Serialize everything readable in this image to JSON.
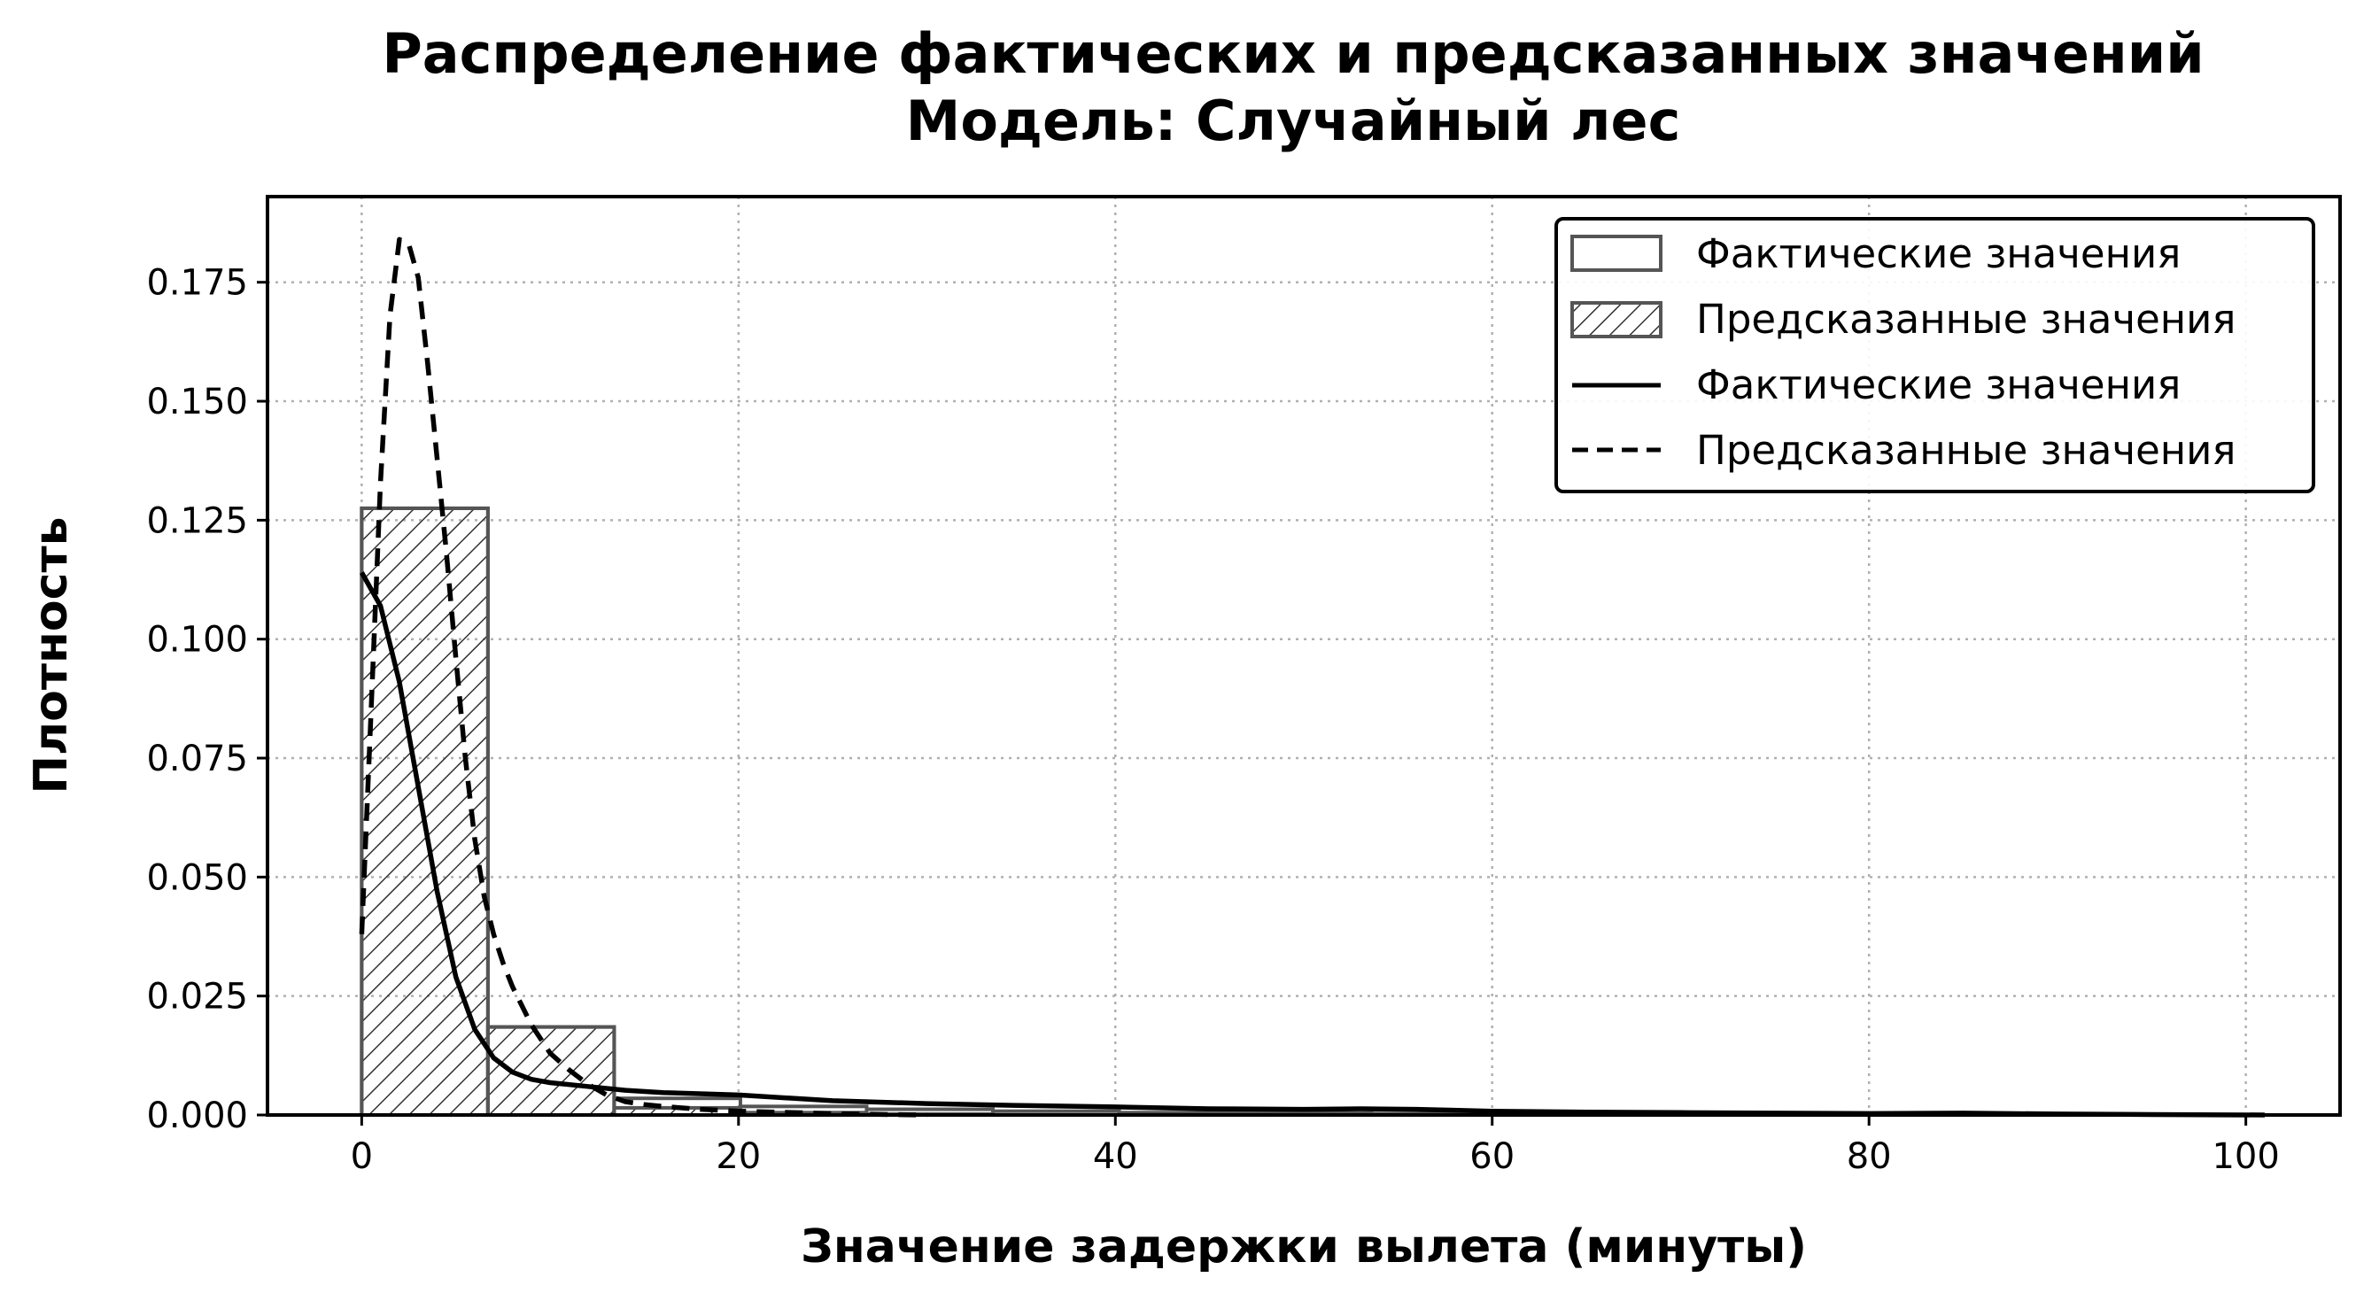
{
  "chart_data": {
    "type": "histogram",
    "title_line1": "Распределение фактических и предсказанных значений",
    "title_line2": "Модель: Случайный лес",
    "xlabel": "Значение задержки вылета (минуты)",
    "ylabel": "Плотность",
    "xlim": [
      -5,
      105
    ],
    "ylim": [
      0,
      0.193
    ],
    "xticks": [
      0,
      20,
      40,
      60,
      80,
      100
    ],
    "yticks": [
      0.0,
      0.025,
      0.05,
      0.075,
      0.1,
      0.125,
      0.15,
      0.175
    ],
    "grid": true,
    "legend_position": "top-right",
    "legend": [
      {
        "label": "Фактические значения",
        "kind": "patch"
      },
      {
        "label": "Предсказанные значения",
        "kind": "patch-hatched"
      },
      {
        "label": "Фактические значения",
        "kind": "line-solid"
      },
      {
        "label": "Предсказанные значения",
        "kind": "line-dashed"
      }
    ],
    "histograms": [
      {
        "name": "Фактические значения",
        "style": "outline",
        "bin_edges": [
          0,
          6.7,
          13.4,
          20.1,
          26.8,
          33.5,
          40.2,
          46.9,
          53.6,
          60.3,
          67,
          73.7,
          80.4,
          87.1,
          93.8,
          100.5
        ],
        "density": [
          0.1275,
          0.0185,
          0.0035,
          0.0018,
          0.0012,
          0.0008,
          0.0005,
          0.0004,
          0.0003,
          0.0002,
          0.0002,
          0.0001,
          0.0001,
          0.0001,
          0.0
        ]
      },
      {
        "name": "Предсказанные значения",
        "style": "hatched",
        "bin_edges": [
          0,
          6.7,
          13.4,
          20.1,
          26.8,
          33.5
        ],
        "density": [
          0.1275,
          0.0185,
          0.0015,
          0.0005,
          0.0002
        ]
      }
    ],
    "kde_series": [
      {
        "name": "Фактические значения",
        "line_style": "solid",
        "x": [
          0,
          1,
          2,
          3,
          4,
          5,
          6,
          7,
          8,
          9,
          10,
          12,
          14,
          16,
          20,
          25,
          30,
          35,
          40,
          45,
          50,
          53,
          56,
          60,
          65,
          70,
          75,
          80,
          85,
          90,
          95,
          101
        ],
        "y": [
          0.114,
          0.107,
          0.091,
          0.069,
          0.047,
          0.029,
          0.018,
          0.012,
          0.009,
          0.0075,
          0.0068,
          0.006,
          0.0052,
          0.0047,
          0.0042,
          0.003,
          0.0024,
          0.002,
          0.0017,
          0.0013,
          0.0012,
          0.0013,
          0.0012,
          0.0008,
          0.0006,
          0.0005,
          0.0004,
          0.0003,
          0.0004,
          0.0002,
          0.0001,
          0.0
        ]
      },
      {
        "name": "Предсказанные значения",
        "line_style": "dashed",
        "x": [
          0,
          0.5,
          1,
          1.5,
          2,
          2.5,
          3,
          3.5,
          4,
          4.5,
          5,
          5.5,
          6,
          6.5,
          7,
          7.5,
          8,
          9,
          10,
          11,
          12,
          13,
          14,
          15,
          16,
          18,
          20,
          22,
          25,
          28,
          30
        ],
        "y": [
          0.038,
          0.085,
          0.133,
          0.168,
          0.184,
          0.183,
          0.176,
          0.158,
          0.138,
          0.118,
          0.096,
          0.075,
          0.058,
          0.046,
          0.038,
          0.032,
          0.027,
          0.019,
          0.013,
          0.0095,
          0.0065,
          0.0042,
          0.0028,
          0.0022,
          0.0018,
          0.0012,
          0.0008,
          0.0006,
          0.0003,
          0.0001,
          0.0
        ]
      }
    ]
  }
}
